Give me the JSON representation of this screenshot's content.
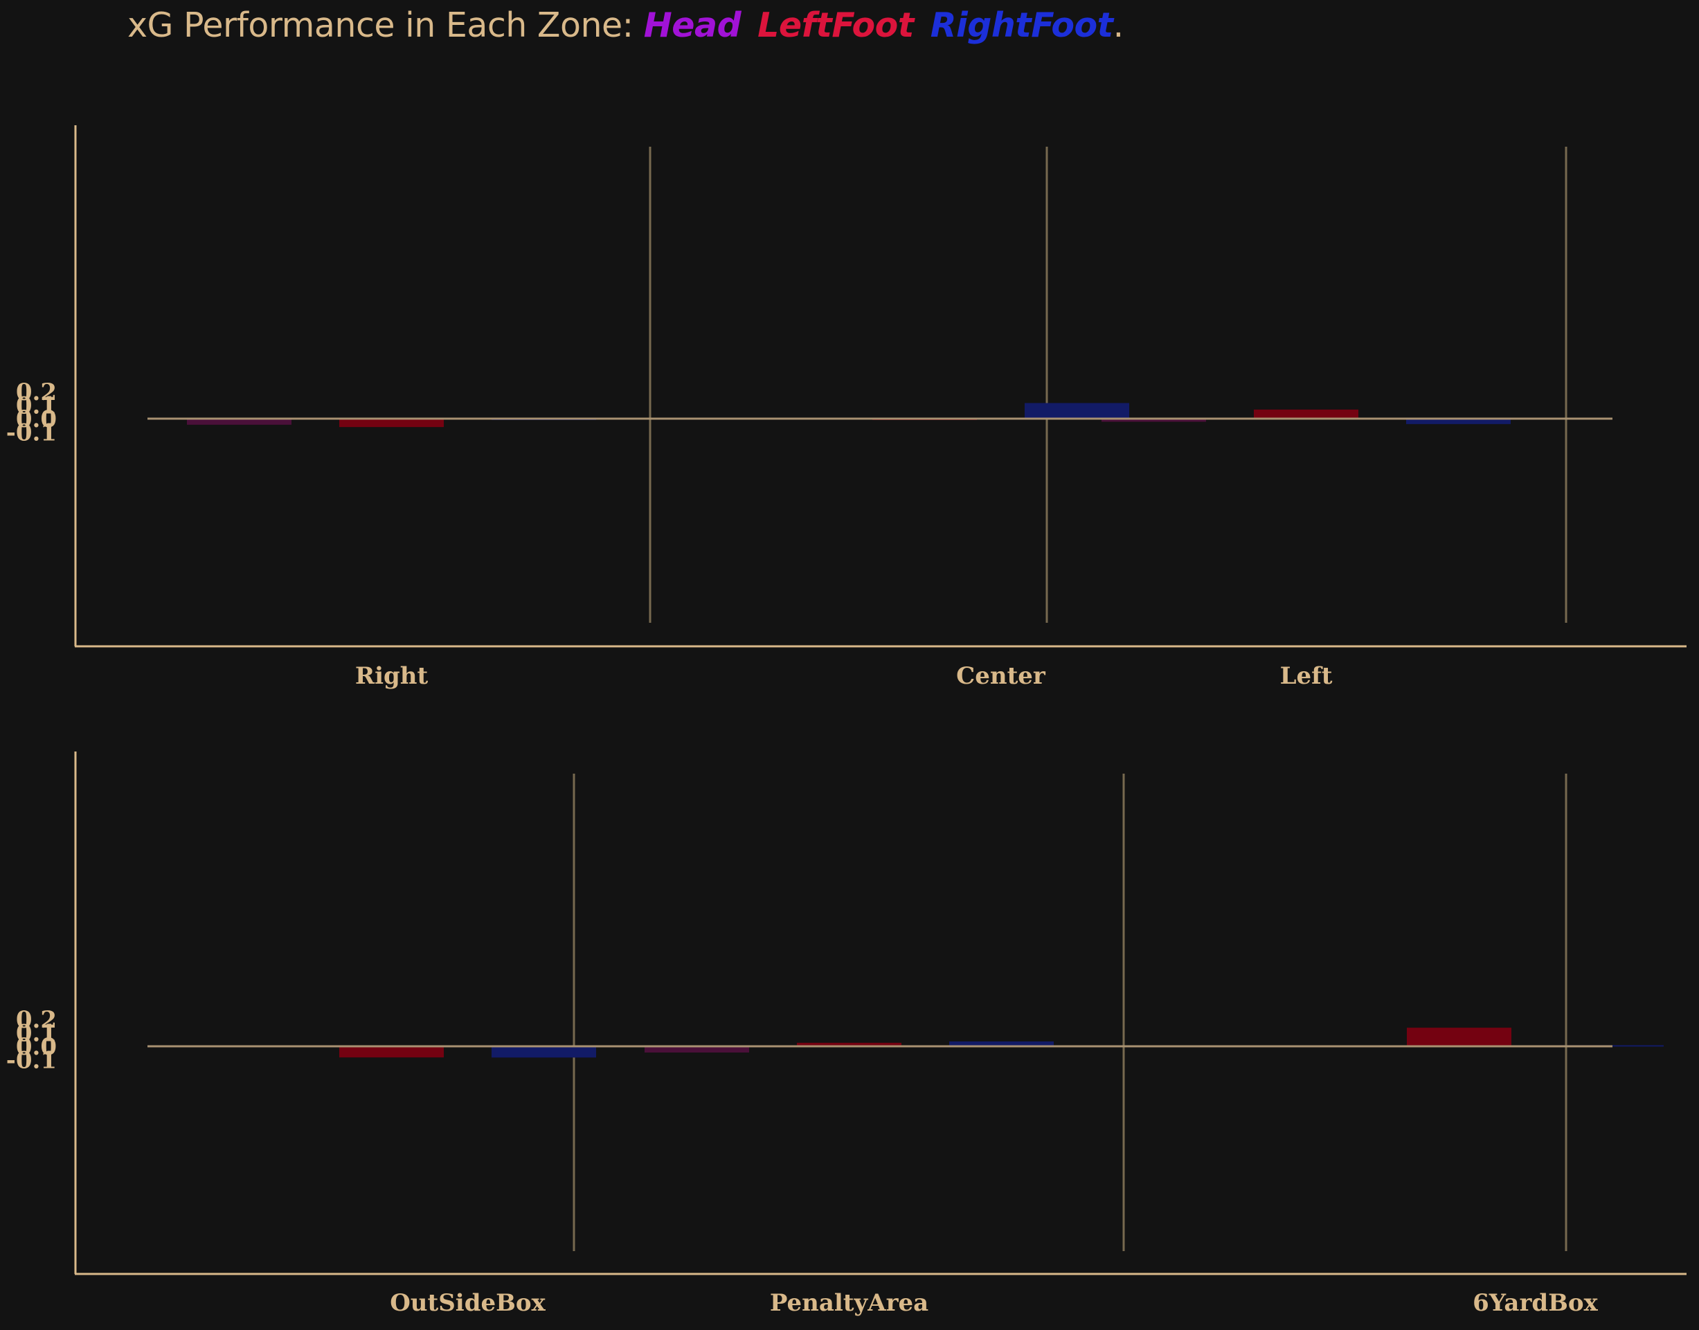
{
  "title": {
    "prefix": "xG Performance in Each Zone: ",
    "legend": [
      {
        "label": "Head",
        "color": "#a112d6"
      },
      {
        "label": "LeftFoot",
        "color": "#dc143c"
      },
      {
        "label": "RightFoot",
        "color": "#1c2fd9"
      }
    ],
    "suffix": "."
  },
  "colors": {
    "background": "#131313",
    "axis": "#d9b98a",
    "separator": "#77694f",
    "bar_head": "#4a1039",
    "bar_leftfoot": "#740211",
    "bar_rightfoot": "#121b66"
  },
  "chart_data": [
    {
      "type": "bar",
      "title": "",
      "xlabel": "",
      "ylabel": "",
      "categories": [
        "Right",
        "Center",
        "Left"
      ],
      "yticks": [
        "0.2",
        "0.1",
        "0.0",
        "-0.1"
      ],
      "ylim": [
        -0.168,
        0.218
      ],
      "grid": false,
      "series": [
        {
          "name": "Head",
          "values": [
            -0.045,
            null,
            -0.023
          ]
        },
        {
          "name": "LeftFoot",
          "values": [
            -0.062,
            -0.007,
            0.067
          ]
        },
        {
          "name": "RightFoot",
          "values": [
            -0.004,
            0.115,
            -0.04
          ]
        }
      ]
    },
    {
      "type": "bar",
      "title": "",
      "xlabel": "",
      "ylabel": "",
      "categories": [
        "OutSideBox",
        "PenaltyArea",
        "6YardBox"
      ],
      "yticks": [
        "0.2",
        "0.1",
        "0.0",
        "-0.1"
      ],
      "ylim": [
        -0.168,
        0.218
      ],
      "grid": false,
      "series": [
        {
          "name": "Head",
          "values": [
            null,
            -0.046,
            null
          ]
        },
        {
          "name": "LeftFoot",
          "values": [
            -0.082,
            0.026,
            0.137
          ]
        },
        {
          "name": "RightFoot",
          "values": [
            -0.083,
            0.036,
            0.008
          ]
        }
      ]
    }
  ]
}
